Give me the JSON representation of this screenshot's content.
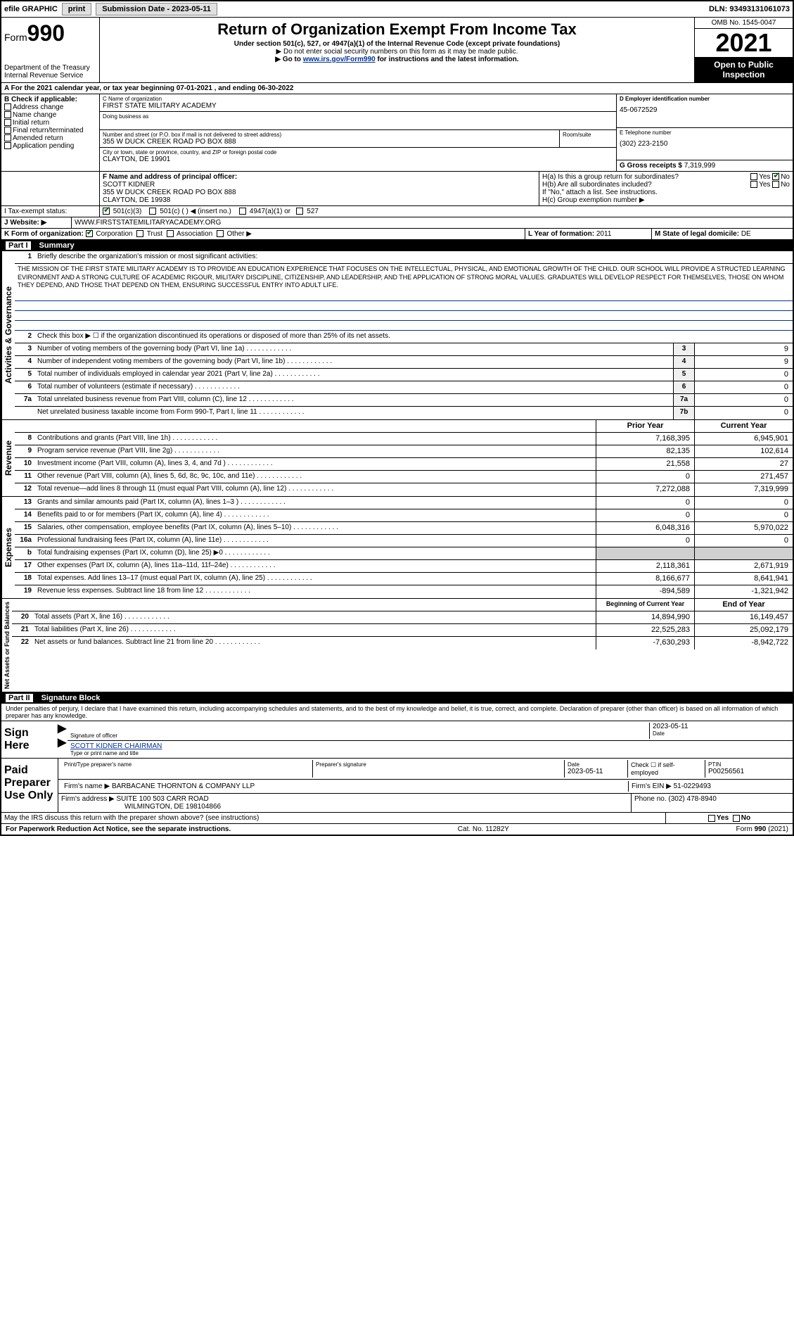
{
  "topbar": {
    "efile": "efile GRAPHIC",
    "print": "print",
    "submission": "Submission Date - 2023-05-11",
    "dln": "DLN: 93493131061073"
  },
  "header": {
    "form_label": "Form",
    "form_num": "990",
    "dept": "Department of the Treasury",
    "irs": "Internal Revenue Service",
    "title": "Return of Organization Exempt From Income Tax",
    "sub1": "Under section 501(c), 527, or 4947(a)(1) of the Internal Revenue Code (except private foundations)",
    "sub2": "▶ Do not enter social security numbers on this form as it may be made public.",
    "sub3_pre": "▶ Go to ",
    "sub3_link": "www.irs.gov/Form990",
    "sub3_post": " for instructions and the latest information.",
    "omb": "OMB No. 1545-0047",
    "year": "2021",
    "open": "Open to Public Inspection"
  },
  "period": {
    "a": "A For the 2021 calendar year, or tax year beginning 07-01-2021  , and ending 06-30-2022"
  },
  "boxB": {
    "label": "B Check if applicable:",
    "items": [
      "Address change",
      "Name change",
      "Initial return",
      "Final return/terminated",
      "Amended return",
      "Application pending"
    ]
  },
  "boxC": {
    "label_c": "C Name of organization",
    "org": "FIRST STATE MILITARY ACADEMY",
    "dba_label": "Doing business as",
    "addr_label": "Number and street (or P.O. box if mail is not delivered to street address)",
    "addr": "355 W DUCK CREEK ROAD PO BOX 888",
    "room_label": "Room/suite",
    "city_label": "City or town, state or province, country, and ZIP or foreign postal code",
    "city": "CLAYTON, DE  19901"
  },
  "boxD": {
    "label": "D Employer identification number",
    "val": "45-0672529"
  },
  "boxE": {
    "label": "E Telephone number",
    "val": "(302) 223-2150"
  },
  "boxG": {
    "label": "G Gross receipts $",
    "val": "7,319,999"
  },
  "boxF": {
    "label": "F  Name and address of principal officer:",
    "name": "SCOTT KIDNER",
    "addr": "355 W DUCK CREEK ROAD PO BOX 888",
    "city": "CLAYTON, DE  19938"
  },
  "boxH": {
    "ha": "H(a)  Is this a group return for subordinates?",
    "hb": "H(b)  Are all subordinates included?",
    "hb_note": "If \"No,\" attach a list. See instructions.",
    "hc": "H(c)  Group exemption number ▶",
    "yes": "Yes",
    "no": "No"
  },
  "boxI": {
    "label": "I  Tax-exempt status:",
    "opts": [
      "501(c)(3)",
      "501(c) (   ) ◀ (insert no.)",
      "4947(a)(1) or",
      "527"
    ]
  },
  "boxJ": {
    "label": "J  Website: ▶",
    "val": "WWW.FIRSTSTATEMILITARYACADEMY.ORG"
  },
  "boxK": {
    "label": "K Form of organization:",
    "opts": [
      "Corporation",
      "Trust",
      "Association",
      "Other ▶"
    ]
  },
  "boxL": {
    "label": "L Year of formation:",
    "val": "2011"
  },
  "boxM": {
    "label": "M State of legal domicile:",
    "val": "DE"
  },
  "part1": {
    "label": "Part I",
    "title": "Summary"
  },
  "summary": {
    "q1": "Briefly describe the organization's mission or most significant activities:",
    "mission": "THE MISSION OF THE FIRST STATE MILITARY ACADEMY IS TO PROVIDE AN EDUCATION EXPERIENCE THAT FOCUSES ON THE INTELLECTUAL, PHYSICAL, AND EMOTIONAL GROWTH OF THE CHILD. OUR SCHOOL WILL PROVIDE A STRUCTED LEARNING EVIRONMENT AND A STRONG CULTURE OF ACADEMIC RIGOUR, MILITARY DISCIPLINE, CITIZENSHIP, AND LEADERSHIP, AND THE APPLICATION OF STRONG MORAL VALUES. GRADUATES WILL DEVELOP RESPECT FOR THEMSELVES, THOSE ON WHOM THEY DEPEND, AND THOSE THAT DEPEND ON THEM, ENSURING SUCCESSFUL ENTRY INTO ADULT LIFE.",
    "q2": "Check this box ▶ ☐ if the organization discontinued its operations or disposed of more than 25% of its net assets.",
    "lines_single": [
      {
        "n": "3",
        "t": "Number of voting members of the governing body (Part VI, line 1a)",
        "box": "3",
        "v": "9"
      },
      {
        "n": "4",
        "t": "Number of independent voting members of the governing body (Part VI, line 1b)",
        "box": "4",
        "v": "9"
      },
      {
        "n": "5",
        "t": "Total number of individuals employed in calendar year 2021 (Part V, line 2a)",
        "box": "5",
        "v": "0"
      },
      {
        "n": "6",
        "t": "Total number of volunteers (estimate if necessary)",
        "box": "6",
        "v": "0"
      },
      {
        "n": "7a",
        "t": "Total unrelated business revenue from Part VIII, column (C), line 12",
        "box": "7a",
        "v": "0"
      },
      {
        "n": "",
        "t": "Net unrelated business taxable income from Form 990-T, Part I, line 11",
        "box": "7b",
        "v": "0"
      }
    ],
    "col_prior": "Prior Year",
    "col_current": "Current Year",
    "side_ag": "Activities & Governance",
    "side_rev": "Revenue",
    "side_exp": "Expenses",
    "side_na": "Net Assets or Fund Balances"
  },
  "revenue": [
    {
      "n": "8",
      "t": "Contributions and grants (Part VIII, line 1h)",
      "p": "7,168,395",
      "c": "6,945,901"
    },
    {
      "n": "9",
      "t": "Program service revenue (Part VIII, line 2g)",
      "p": "82,135",
      "c": "102,614"
    },
    {
      "n": "10",
      "t": "Investment income (Part VIII, column (A), lines 3, 4, and 7d )",
      "p": "21,558",
      "c": "27"
    },
    {
      "n": "11",
      "t": "Other revenue (Part VIII, column (A), lines 5, 6d, 8c, 9c, 10c, and 11e)",
      "p": "0",
      "c": "271,457"
    },
    {
      "n": "12",
      "t": "Total revenue—add lines 8 through 11 (must equal Part VIII, column (A), line 12)",
      "p": "7,272,088",
      "c": "7,319,999"
    }
  ],
  "expenses": [
    {
      "n": "13",
      "t": "Grants and similar amounts paid (Part IX, column (A), lines 1–3 )",
      "p": "0",
      "c": "0"
    },
    {
      "n": "14",
      "t": "Benefits paid to or for members (Part IX, column (A), line 4)",
      "p": "0",
      "c": "0"
    },
    {
      "n": "15",
      "t": "Salaries, other compensation, employee benefits (Part IX, column (A), lines 5–10)",
      "p": "6,048,316",
      "c": "5,970,022"
    },
    {
      "n": "16a",
      "t": "Professional fundraising fees (Part IX, column (A), line 11e)",
      "p": "0",
      "c": "0"
    },
    {
      "n": "b",
      "t": "Total fundraising expenses (Part IX, column (D), line 25) ▶0",
      "p": "",
      "c": "",
      "shaded": true
    },
    {
      "n": "17",
      "t": "Other expenses (Part IX, column (A), lines 11a–11d, 11f–24e)",
      "p": "2,118,361",
      "c": "2,671,919"
    },
    {
      "n": "18",
      "t": "Total expenses. Add lines 13–17 (must equal Part IX, column (A), line 25)",
      "p": "8,166,677",
      "c": "8,641,941"
    },
    {
      "n": "19",
      "t": "Revenue less expenses. Subtract line 18 from line 12",
      "p": "-894,589",
      "c": "-1,321,942"
    }
  ],
  "netassets": {
    "col_begin": "Beginning of Current Year",
    "col_end": "End of Year",
    "rows": [
      {
        "n": "20",
        "t": "Total assets (Part X, line 16)",
        "p": "14,894,990",
        "c": "16,149,457"
      },
      {
        "n": "21",
        "t": "Total liabilities (Part X, line 26)",
        "p": "22,525,283",
        "c": "25,092,179"
      },
      {
        "n": "22",
        "t": "Net assets or fund balances. Subtract line 21 from line 20",
        "p": "-7,630,293",
        "c": "-8,942,722"
      }
    ]
  },
  "part2": {
    "label": "Part II",
    "title": "Signature Block"
  },
  "sig": {
    "decl": "Under penalties of perjury, I declare that I have examined this return, including accompanying schedules and statements, and to the best of my knowledge and belief, it is true, correct, and complete. Declaration of preparer (other than officer) is based on all information of which preparer has any knowledge.",
    "sign_here": "Sign Here",
    "sig_officer": "Signature of officer",
    "date": "Date",
    "date_val": "2023-05-11",
    "name": "SCOTT KIDNER  CHAIRMAN",
    "name_label": "Type or print name and title",
    "paid": "Paid Preparer Use Only",
    "prep_name_label": "Print/Type preparer's name",
    "prep_sig_label": "Preparer's signature",
    "prep_date": "2023-05-11",
    "check_se": "Check ☐ if self-employed",
    "ptin_label": "PTIN",
    "ptin": "P00256561",
    "firm_name_label": "Firm's name    ▶",
    "firm_name": "BARBACANE THORNTON & COMPANY LLP",
    "firm_ein_label": "Firm's EIN ▶",
    "firm_ein": "51-0229493",
    "firm_addr_label": "Firm's address ▶",
    "firm_addr1": "SUITE 100 503 CARR ROAD",
    "firm_addr2": "WILMINGTON, DE  198104866",
    "phone_label": "Phone no.",
    "phone": "(302) 478-8940",
    "may_irs": "May the IRS discuss this return with the preparer shown above? (see instructions)",
    "yes": "Yes",
    "no": "No"
  },
  "footer": {
    "pra": "For Paperwork Reduction Act Notice, see the separate instructions.",
    "cat": "Cat. No. 11282Y",
    "form": "Form 990 (2021)"
  }
}
